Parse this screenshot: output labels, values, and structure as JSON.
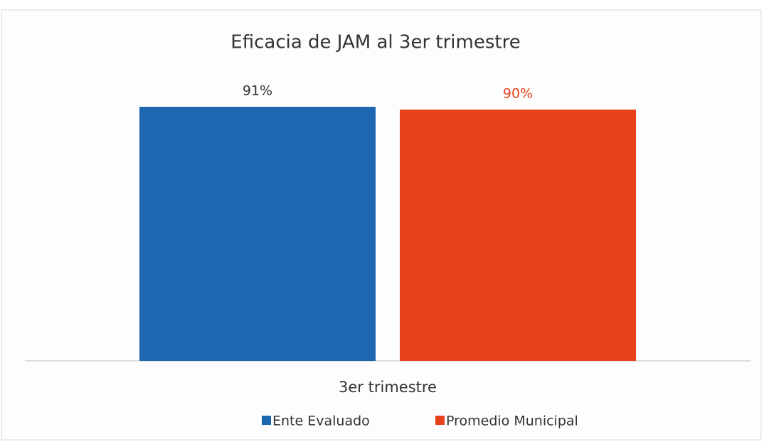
{
  "chart_data": {
    "type": "bar",
    "title": "Eficacia de JAM al 3er trimestre",
    "categories": [
      "3er trimestre"
    ],
    "series": [
      {
        "name": "Ente Evaluado",
        "color": "#1f66b0",
        "values": [
          91
        ],
        "value_labels": [
          "91%"
        ]
      },
      {
        "name": "Promedio Municipal",
        "color": "#e8421d",
        "values": [
          90
        ],
        "value_labels": [
          "90%"
        ]
      }
    ],
    "legend": "bottom"
  }
}
